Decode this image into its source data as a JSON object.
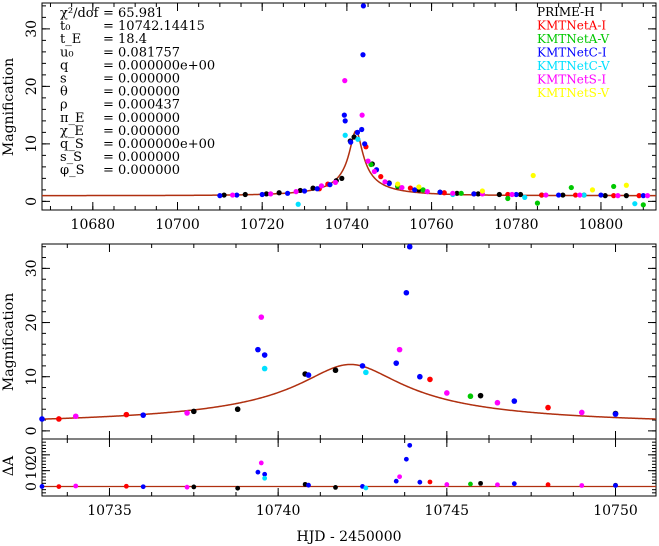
{
  "chart_data": [
    {
      "panel": "overview",
      "type": "scatter",
      "title": "",
      "xlabel": "",
      "ylabel": "Magnification",
      "xlim": [
        10668,
        10813
      ],
      "ylim": [
        -1.5,
        34.5
      ],
      "x_ticks": [
        10680,
        10700,
        10720,
        10740,
        10760,
        10780,
        10800
      ],
      "y_ticks": [
        0,
        10,
        20,
        30
      ],
      "grid": false,
      "legend_position": "top-right",
      "params_label": [
        "χ²/dof",
        "t₀",
        "t_E",
        "u₀",
        "q",
        "s",
        "θ",
        "ρ",
        "π_E",
        "χ_E",
        "q_S",
        "s_S",
        "φ_S"
      ],
      "params_value": [
        "= 65.981",
        "= 10742.14415",
        "= 18.4",
        "= 0.081757",
        "= 0.000000e+00",
        "= 0.000000",
        "= 0.000000",
        "= 0.000437",
        "= 0.000000",
        "= 0.000000",
        "= 0.000000e+00",
        "= 0.000000",
        "= 0.000000"
      ],
      "model_params": {
        "t0": 10742.14415,
        "tE": 18.4,
        "u0": 0.081757
      },
      "series": [
        {
          "name": "PRIME-H",
          "color": "#000000",
          "x": [
            10711,
            10716,
            10721,
            10724,
            10729,
            10732,
            10737.5,
            10738.8,
            10740.8,
            10741.7,
            10746,
            10750,
            10752,
            10757,
            10762,
            10766,
            10771,
            10776,
            10781,
            10786,
            10791,
            10796,
            10801,
            10806
          ],
          "y": [
            1.1,
            1.2,
            1.3,
            1.5,
            1.9,
            2.3,
            3.6,
            4.0,
            10.5,
            11.2,
            6.5,
            3.2,
            2.6,
            2.0,
            1.6,
            1.4,
            1.3,
            1.2,
            1.2,
            1.1,
            1.1,
            1.1,
            1.0,
            1.0
          ]
        },
        {
          "name": "KMTNetA-I",
          "color": "#ff0000",
          "x": [
            10733.5,
            10735.5,
            10744.5,
            10748,
            10755,
            10763,
            10770,
            10778,
            10786,
            10794,
            10803,
            10809
          ],
          "y": [
            2.2,
            3.0,
            9.5,
            4.3,
            2.3,
            1.5,
            1.3,
            1.2,
            1.1,
            1.1,
            1.0,
            1.0
          ]
        },
        {
          "name": "KMTNetA-V",
          "color": "#00c800",
          "x": [
            10745.7,
            10752,
            10758,
            10767,
            10778,
            10785,
            10793,
            10803,
            10810
          ],
          "y": [
            6.4,
            2.7,
            2.0,
            1.4,
            0.5,
            -0.3,
            2.4,
            2.6,
            -0.6
          ]
        },
        {
          "name": "KMTNetC-I",
          "color": "#0000ff",
          "x": [
            10710,
            10714,
            10720,
            10726,
            10730,
            10733,
            10736,
            10739.4,
            10739.6,
            10740.9,
            10742.5,
            10743.5,
            10743.8,
            10743.9,
            10744.2,
            10747,
            10750,
            10756,
            10762,
            10770,
            10780,
            10790,
            10800,
            10810
          ],
          "y": [
            1.0,
            1.1,
            1.2,
            1.4,
            1.8,
            2.2,
            2.9,
            15.0,
            14.0,
            10.3,
            12.0,
            12.5,
            25.5,
            34.0,
            10.0,
            5.5,
            3.1,
            2.0,
            1.6,
            1.3,
            1.2,
            1.1,
            1.1,
            1.0
          ]
        },
        {
          "name": "KMTNetC-V",
          "color": "#00e0ff",
          "x": [
            10728.5,
            10739.6,
            10742.6,
            10765,
            10782,
            10796,
            10808
          ],
          "y": [
            -0.5,
            11.5,
            10.8,
            1.2,
            0.7,
            1.1,
            -0.4
          ]
        },
        {
          "name": "KMTNetS-I",
          "color": "#ff00ff",
          "x": [
            10713,
            10722,
            10728,
            10734,
            10737.3,
            10739.5,
            10743.6,
            10745,
            10746.5,
            10749,
            10753,
            10759,
            10765,
            10772,
            10779,
            10787,
            10795,
            10804,
            10811
          ],
          "y": [
            1.1,
            1.3,
            1.7,
            2.7,
            3.3,
            21.0,
            15.0,
            7.0,
            5.2,
            3.4,
            2.4,
            1.7,
            1.4,
            1.3,
            1.2,
            1.1,
            1.1,
            1.0,
            1.0
          ]
        },
        {
          "name": "KMTNetS-V",
          "color": "#ffff00",
          "x": [
            10752,
            10757,
            10772,
            10784,
            10798,
            10806
          ],
          "y": [
            3.0,
            2.5,
            1.8,
            4.5,
            2.0,
            2.8
          ]
        }
      ]
    },
    {
      "panel": "zoom",
      "type": "scatter",
      "title": "",
      "xlabel": "",
      "ylabel": "Magnification",
      "xlim": [
        10733,
        10751.2
      ],
      "ylim": [
        -1.5,
        34.5
      ],
      "x_ticks": [
        10735,
        10740,
        10745,
        10750
      ],
      "y_ticks": [
        0,
        10,
        20,
        30
      ],
      "grid": false
    },
    {
      "panel": "residuals",
      "type": "scatter",
      "title": "",
      "xlabel": "HJD - 2450000",
      "ylabel": "ΔA",
      "xlim": [
        10733,
        10751.2
      ],
      "ylim": [
        -6,
        30
      ],
      "y_ticks": [
        0,
        10,
        20
      ],
      "y_tick_labels": [
        "0",
        "10",
        "20"
      ],
      "x_ticks": [
        10735,
        10740,
        10745,
        10750
      ],
      "grid": false
    }
  ]
}
